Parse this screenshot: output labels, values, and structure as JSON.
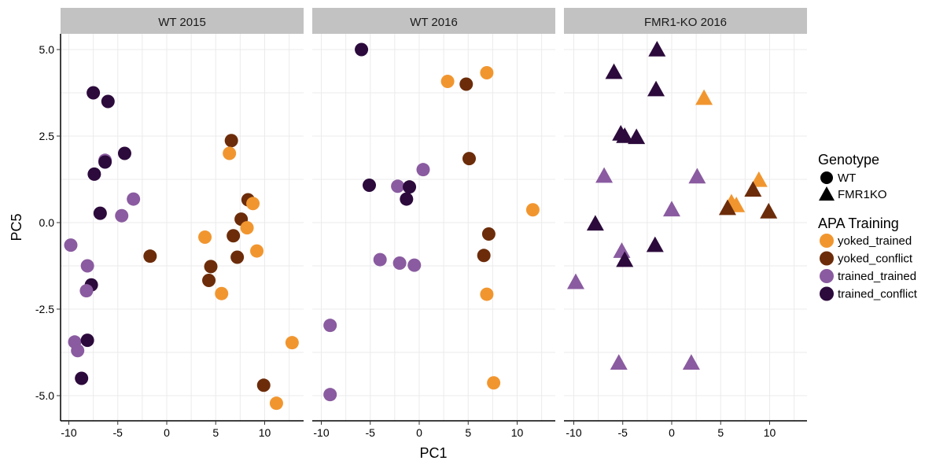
{
  "chart_data": {
    "type": "scatter",
    "xlabel": "PC1",
    "ylabel": "PC5",
    "xlim": [
      -11,
      14
    ],
    "ylim": [
      -5.6,
      5.5
    ],
    "x_ticks": [
      -10,
      -5,
      0,
      5,
      10
    ],
    "x_tick_labels": [
      "-10",
      "-5",
      "0",
      "5",
      "10"
    ],
    "y_ticks": [
      5.0,
      2.5,
      0.0,
      -2.5,
      -5.0
    ],
    "y_tick_labels": [
      "5.0",
      "2.5",
      "0.0",
      "-2.5",
      "-5.0"
    ],
    "grid": true,
    "colors": {
      "yoked_trained": "#F1962F",
      "yoked_conflict": "#6C2C0A",
      "trained_trained": "#8A5BA0",
      "trained_conflict": "#2C0A3C"
    },
    "legend": {
      "position": "right",
      "genotype_title": "Genotype",
      "genotype_items": [
        {
          "key": "WT",
          "label": "WT",
          "shape": "circle"
        },
        {
          "key": "FMR1KO",
          "label": "FMR1KO",
          "shape": "triangle"
        }
      ],
      "training_title": "APA Training",
      "training_items": [
        {
          "key": "yoked_trained",
          "label": "yoked_trained"
        },
        {
          "key": "yoked_conflict",
          "label": "yoked_conflict"
        },
        {
          "key": "trained_trained",
          "label": "trained_trained"
        },
        {
          "key": "trained_conflict",
          "label": "trained_conflict"
        }
      ]
    },
    "panels": [
      {
        "title": "WT 2015",
        "genotype": "WT",
        "points": [
          {
            "x": -7.5,
            "y": 3.75,
            "group": "trained_conflict"
          },
          {
            "x": -6.0,
            "y": 3.5,
            "group": "trained_conflict"
          },
          {
            "x": -6.3,
            "y": 1.8,
            "group": "trained_trained"
          },
          {
            "x": -6.3,
            "y": 1.75,
            "group": "trained_conflict"
          },
          {
            "x": -4.3,
            "y": 2.0,
            "group": "trained_conflict"
          },
          {
            "x": -7.4,
            "y": 1.4,
            "group": "trained_conflict"
          },
          {
            "x": -6.8,
            "y": 0.27,
            "group": "trained_conflict"
          },
          {
            "x": -3.4,
            "y": 0.68,
            "group": "trained_trained"
          },
          {
            "x": -4.6,
            "y": 0.2,
            "group": "trained_trained"
          },
          {
            "x": -9.8,
            "y": -0.65,
            "group": "trained_trained"
          },
          {
            "x": -8.1,
            "y": -1.25,
            "group": "trained_trained"
          },
          {
            "x": -7.7,
            "y": -1.8,
            "group": "trained_conflict"
          },
          {
            "x": -8.2,
            "y": -1.97,
            "group": "trained_trained"
          },
          {
            "x": -9.4,
            "y": -3.45,
            "group": "trained_trained"
          },
          {
            "x": -9.1,
            "y": -3.7,
            "group": "trained_trained"
          },
          {
            "x": -8.1,
            "y": -3.4,
            "group": "trained_conflict"
          },
          {
            "x": -8.7,
            "y": -4.5,
            "group": "trained_conflict"
          },
          {
            "x": -1.7,
            "y": -0.97,
            "group": "yoked_conflict"
          },
          {
            "x": 6.6,
            "y": 2.37,
            "group": "yoked_conflict"
          },
          {
            "x": 6.4,
            "y": 2.0,
            "group": "yoked_trained"
          },
          {
            "x": 8.3,
            "y": 0.66,
            "group": "yoked_conflict"
          },
          {
            "x": 8.8,
            "y": 0.55,
            "group": "yoked_trained"
          },
          {
            "x": 7.6,
            "y": 0.1,
            "group": "yoked_conflict"
          },
          {
            "x": 8.2,
            "y": -0.15,
            "group": "yoked_trained"
          },
          {
            "x": 6.8,
            "y": -0.38,
            "group": "yoked_conflict"
          },
          {
            "x": 3.9,
            "y": -0.42,
            "group": "yoked_trained"
          },
          {
            "x": 9.2,
            "y": -0.82,
            "group": "yoked_trained"
          },
          {
            "x": 7.2,
            "y": -1.0,
            "group": "yoked_conflict"
          },
          {
            "x": 4.5,
            "y": -1.27,
            "group": "yoked_conflict"
          },
          {
            "x": 4.3,
            "y": -1.67,
            "group": "yoked_conflict"
          },
          {
            "x": 5.6,
            "y": -2.05,
            "group": "yoked_trained"
          },
          {
            "x": 12.8,
            "y": -3.47,
            "group": "yoked_trained"
          },
          {
            "x": 9.9,
            "y": -4.7,
            "group": "yoked_conflict"
          },
          {
            "x": 11.2,
            "y": -5.22,
            "group": "yoked_trained"
          }
        ]
      },
      {
        "title": "WT 2016",
        "genotype": "WT",
        "points": [
          {
            "x": -5.9,
            "y": 5.0,
            "group": "trained_conflict"
          },
          {
            "x": 2.9,
            "y": 4.08,
            "group": "yoked_trained"
          },
          {
            "x": 4.8,
            "y": 4.0,
            "group": "yoked_conflict"
          },
          {
            "x": 6.9,
            "y": 4.33,
            "group": "yoked_trained"
          },
          {
            "x": 5.1,
            "y": 1.85,
            "group": "yoked_conflict"
          },
          {
            "x": 0.4,
            "y": 1.53,
            "group": "trained_trained"
          },
          {
            "x": -5.1,
            "y": 1.08,
            "group": "trained_conflict"
          },
          {
            "x": -2.2,
            "y": 1.05,
            "group": "trained_trained"
          },
          {
            "x": -1.0,
            "y": 1.03,
            "group": "trained_conflict"
          },
          {
            "x": -1.3,
            "y": 0.68,
            "group": "trained_conflict"
          },
          {
            "x": 11.6,
            "y": 0.37,
            "group": "yoked_trained"
          },
          {
            "x": 7.1,
            "y": -0.33,
            "group": "yoked_conflict"
          },
          {
            "x": 6.6,
            "y": -0.95,
            "group": "yoked_conflict"
          },
          {
            "x": -4.0,
            "y": -1.07,
            "group": "trained_trained"
          },
          {
            "x": -2.0,
            "y": -1.17,
            "group": "trained_trained"
          },
          {
            "x": -0.5,
            "y": -1.23,
            "group": "trained_trained"
          },
          {
            "x": 6.9,
            "y": -2.07,
            "group": "yoked_trained"
          },
          {
            "x": -9.1,
            "y": -2.97,
            "group": "trained_trained"
          },
          {
            "x": 7.6,
            "y": -4.63,
            "group": "yoked_trained"
          },
          {
            "x": -9.1,
            "y": -4.97,
            "group": "trained_trained"
          }
        ]
      },
      {
        "title": "FMR1-KO 2016",
        "genotype": "FMR1KO",
        "points": [
          {
            "x": -1.5,
            "y": 5.0,
            "group": "trained_conflict"
          },
          {
            "x": -5.9,
            "y": 4.35,
            "group": "trained_conflict"
          },
          {
            "x": -1.6,
            "y": 3.85,
            "group": "trained_conflict"
          },
          {
            "x": 3.3,
            "y": 3.6,
            "group": "yoked_trained"
          },
          {
            "x": -5.2,
            "y": 2.57,
            "group": "trained_conflict"
          },
          {
            "x": -4.8,
            "y": 2.5,
            "group": "trained_conflict"
          },
          {
            "x": -3.6,
            "y": 2.47,
            "group": "trained_conflict"
          },
          {
            "x": -6.9,
            "y": 1.35,
            "group": "trained_trained"
          },
          {
            "x": 2.6,
            "y": 1.33,
            "group": "trained_trained"
          },
          {
            "x": 8.9,
            "y": 1.23,
            "group": "yoked_trained"
          },
          {
            "x": 8.3,
            "y": 0.95,
            "group": "yoked_conflict"
          },
          {
            "x": 6.1,
            "y": 0.58,
            "group": "yoked_trained"
          },
          {
            "x": 6.6,
            "y": 0.5,
            "group": "yoked_trained"
          },
          {
            "x": 5.7,
            "y": 0.42,
            "group": "yoked_conflict"
          },
          {
            "x": 0.0,
            "y": 0.38,
            "group": "trained_trained"
          },
          {
            "x": 9.9,
            "y": 0.32,
            "group": "yoked_conflict"
          },
          {
            "x": -7.8,
            "y": -0.03,
            "group": "trained_conflict"
          },
          {
            "x": -1.7,
            "y": -0.65,
            "group": "trained_conflict"
          },
          {
            "x": -5.1,
            "y": -0.82,
            "group": "trained_trained"
          },
          {
            "x": -4.8,
            "y": -1.08,
            "group": "trained_conflict"
          },
          {
            "x": -9.8,
            "y": -1.72,
            "group": "trained_trained"
          },
          {
            "x": -5.4,
            "y": -4.05,
            "group": "trained_trained"
          },
          {
            "x": 2.0,
            "y": -4.05,
            "group": "trained_trained"
          }
        ]
      }
    ]
  }
}
